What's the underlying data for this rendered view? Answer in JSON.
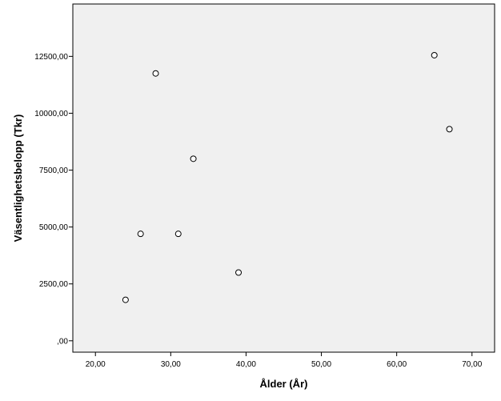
{
  "chart_data": {
    "type": "scatter",
    "xlabel": "Ålder (År)",
    "ylabel": "Väsentlighetsbelopp (Tkr)",
    "xlim": [
      17,
      73
    ],
    "ylim": [
      -500,
      14800
    ],
    "grid": false,
    "legend": "none",
    "x_ticks": [
      {
        "value": 20,
        "label": "20,00"
      },
      {
        "value": 30,
        "label": "30,00"
      },
      {
        "value": 40,
        "label": "40,00"
      },
      {
        "value": 50,
        "label": "50,00"
      },
      {
        "value": 60,
        "label": "60,00"
      },
      {
        "value": 70,
        "label": "70,00"
      }
    ],
    "y_ticks": [
      {
        "value": 0,
        "label": ",00"
      },
      {
        "value": 2500,
        "label": "2500,00"
      },
      {
        "value": 5000,
        "label": "5000,00"
      },
      {
        "value": 7500,
        "label": "7500,00"
      },
      {
        "value": 10000,
        "label": "10000,00"
      },
      {
        "value": 12500,
        "label": "12500,00"
      }
    ],
    "points": [
      {
        "x": 24,
        "y": 1800
      },
      {
        "x": 26,
        "y": 4700
      },
      {
        "x": 28,
        "y": 11750
      },
      {
        "x": 31,
        "y": 4700
      },
      {
        "x": 33,
        "y": 8000
      },
      {
        "x": 39,
        "y": 3000
      },
      {
        "x": 65,
        "y": 12550
      },
      {
        "x": 67,
        "y": 9300
      }
    ],
    "colors": {
      "plot_bg": "#f0f0f0",
      "marker_stroke": "#000000",
      "marker_fill": "#ffffff"
    }
  }
}
